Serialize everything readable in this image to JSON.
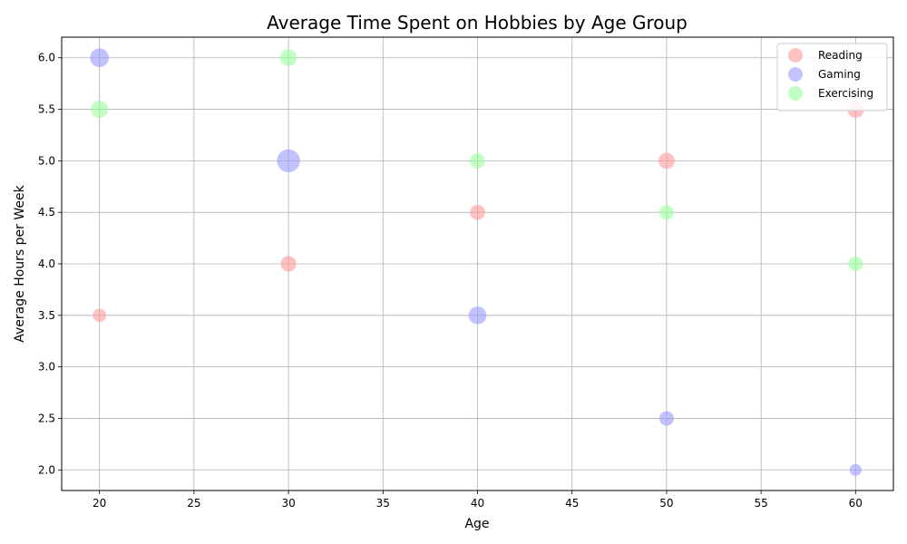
{
  "chart_data": {
    "type": "scatter",
    "title": "Average Time Spent on Hobbies by Age Group",
    "xlabel": "Age",
    "ylabel": "Average Hours per Week",
    "xlim": [
      18,
      62
    ],
    "ylim": [
      1.8,
      6.2
    ],
    "xticks": [
      20,
      25,
      30,
      35,
      40,
      45,
      50,
      55,
      60
    ],
    "yticks": [
      2.0,
      2.5,
      3.0,
      3.5,
      4.0,
      4.5,
      5.0,
      5.5,
      6.0
    ],
    "grid": true,
    "legend_position": "top-right",
    "series": [
      {
        "name": "Reading",
        "color": "#ff9999",
        "points": [
          {
            "x": 20,
            "y": 3.5,
            "size": 10
          },
          {
            "x": 30,
            "y": 4.0,
            "size": 14
          },
          {
            "x": 40,
            "y": 4.5,
            "size": 13
          },
          {
            "x": 50,
            "y": 5.0,
            "size": 15
          },
          {
            "x": 60,
            "y": 5.5,
            "size": 16
          }
        ]
      },
      {
        "name": "Gaming",
        "color": "#9999ff",
        "points": [
          {
            "x": 20,
            "y": 6.0,
            "size": 20
          },
          {
            "x": 30,
            "y": 5.0,
            "size": 30
          },
          {
            "x": 40,
            "y": 3.5,
            "size": 18
          },
          {
            "x": 50,
            "y": 2.5,
            "size": 12
          },
          {
            "x": 60,
            "y": 2.0,
            "size": 8
          }
        ]
      },
      {
        "name": "Exercising",
        "color": "#99ff99",
        "points": [
          {
            "x": 20,
            "y": 5.5,
            "size": 17
          },
          {
            "x": 30,
            "y": 6.0,
            "size": 16
          },
          {
            "x": 40,
            "y": 5.0,
            "size": 13
          },
          {
            "x": 50,
            "y": 4.5,
            "size": 12
          },
          {
            "x": 60,
            "y": 4.0,
            "size": 12
          }
        ]
      }
    ]
  }
}
